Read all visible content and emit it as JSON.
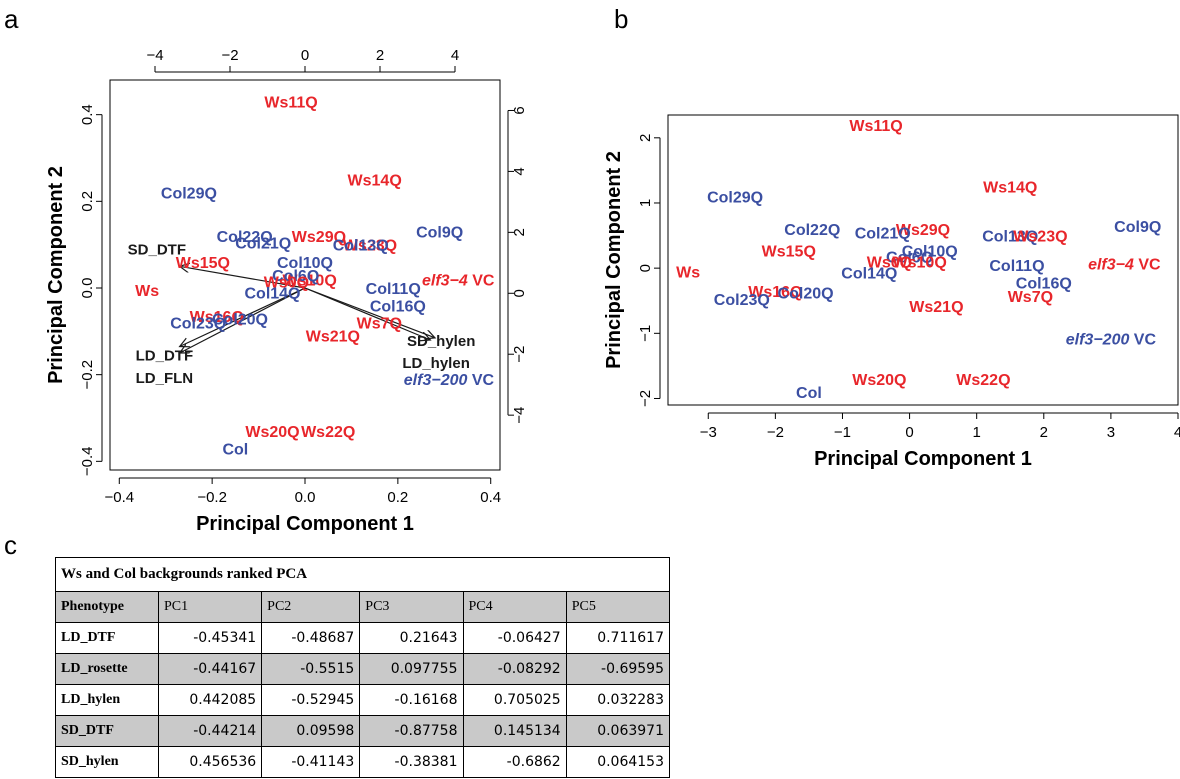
{
  "panels": {
    "a": "a",
    "b": "b",
    "c": "c"
  },
  "colors": {
    "ws": "#e8262b",
    "col": "#3b4fa2",
    "vector": "#1a1a1a"
  },
  "chart_data": [
    {
      "panel": "a",
      "type": "scatter",
      "xlabel": "Principal Component 1",
      "ylabel": "Principal Component 2",
      "xlim": [
        -0.42,
        0.42
      ],
      "ylim": [
        -0.42,
        0.48
      ],
      "x_ticks": [
        "-0.4",
        "-0.2",
        "0.0",
        "0.2",
        "0.4"
      ],
      "y_ticks": [
        "-0.4",
        "-0.2",
        "0.0",
        "0.2",
        "0.4"
      ],
      "top_ticks": [
        "-4",
        "-2",
        "0",
        "2",
        "4"
      ],
      "right_ticks": [
        "-4",
        "-2",
        "0",
        "2",
        "4",
        "6"
      ],
      "points": [
        {
          "label": "Ws11Q",
          "x": -0.03,
          "y": 0.43,
          "group": "ws"
        },
        {
          "label": "Ws14Q",
          "x": 0.15,
          "y": 0.25,
          "group": "ws"
        },
        {
          "label": "Col29Q",
          "x": -0.25,
          "y": 0.22,
          "group": "col"
        },
        {
          "label": "Col22Q",
          "x": -0.13,
          "y": 0.12,
          "group": "col"
        },
        {
          "label": "Ws29Q",
          "x": 0.03,
          "y": 0.12,
          "group": "ws"
        },
        {
          "label": "Col21Q",
          "x": -0.09,
          "y": 0.105,
          "group": "col"
        },
        {
          "label": "Col9Q",
          "x": 0.29,
          "y": 0.13,
          "group": "col"
        },
        {
          "label": "Ws23Q",
          "x": 0.14,
          "y": 0.1,
          "group": "ws"
        },
        {
          "label": "Col13Q",
          "x": 0.12,
          "y": 0.1,
          "group": "col"
        },
        {
          "label": "Ws15Q",
          "x": -0.22,
          "y": 0.06,
          "group": "ws"
        },
        {
          "label": "Col10Q",
          "x": 0.0,
          "y": 0.06,
          "group": "col"
        },
        {
          "label": "Ws10Q",
          "x": 0.01,
          "y": 0.02,
          "group": "ws"
        },
        {
          "label": "Col6Q",
          "x": -0.02,
          "y": 0.03,
          "group": "col"
        },
        {
          "label": "Ws0Q",
          "x": -0.04,
          "y": 0.015,
          "group": "ws"
        },
        {
          "label": "Ws",
          "x": -0.34,
          "y": -0.005,
          "group": "ws"
        },
        {
          "label": "elf3−4 VC",
          "x": 0.33,
          "y": 0.02,
          "group": "ws",
          "italic_part": "elf3−4",
          "plain_part": " VC"
        },
        {
          "label": "Col11Q",
          "x": 0.19,
          "y": 0.0,
          "group": "col"
        },
        {
          "label": "Col14Q",
          "x": -0.07,
          "y": -0.01,
          "group": "col"
        },
        {
          "label": "Col16Q",
          "x": 0.2,
          "y": -0.04,
          "group": "col"
        },
        {
          "label": "Ws16Q",
          "x": -0.19,
          "y": -0.065,
          "group": "ws"
        },
        {
          "label": "Col20Q",
          "x": -0.14,
          "y": -0.07,
          "group": "col"
        },
        {
          "label": "Col23Q",
          "x": -0.23,
          "y": -0.08,
          "group": "col"
        },
        {
          "label": "Ws7Q",
          "x": 0.16,
          "y": -0.08,
          "group": "ws"
        },
        {
          "label": "Ws21Q",
          "x": 0.06,
          "y": -0.11,
          "group": "ws"
        },
        {
          "label": "elf3−200 VC",
          "x": 0.31,
          "y": -0.21,
          "group": "col",
          "italic_part": "elf3−200",
          "plain_part": " VC"
        },
        {
          "label": "Ws20Q",
          "x": -0.07,
          "y": -0.33,
          "group": "ws"
        },
        {
          "label": "Ws22Q",
          "x": 0.05,
          "y": -0.33,
          "group": "ws"
        },
        {
          "label": "Col",
          "x": -0.15,
          "y": -0.37,
          "group": "col"
        }
      ],
      "vectors": [
        {
          "label": "SD_DTF",
          "x": -0.27,
          "y": 0.05
        },
        {
          "label": "LD_DTF",
          "x": -0.27,
          "y": -0.135
        },
        {
          "label": "LD_FLN",
          "x": -0.27,
          "y": -0.15
        },
        {
          "label": "SD_hylen",
          "x": 0.28,
          "y": -0.115
        },
        {
          "label": "LD_hylen",
          "x": 0.27,
          "y": -0.12
        }
      ]
    },
    {
      "panel": "b",
      "type": "scatter",
      "xlabel": "Principal Component 1",
      "ylabel": "Principal Component 2",
      "xlim": [
        -3.6,
        4.0
      ],
      "ylim": [
        -2.1,
        2.35
      ],
      "x_ticks": [
        "-3",
        "-2",
        "-1",
        "0",
        "1",
        "2",
        "3",
        "4"
      ],
      "y_ticks": [
        "-2",
        "-1",
        "0",
        "1",
        "2"
      ],
      "points": [
        {
          "label": "Ws11Q",
          "x": -0.5,
          "y": 2.2,
          "group": "ws"
        },
        {
          "label": "Ws14Q",
          "x": 1.5,
          "y": 1.25,
          "group": "ws"
        },
        {
          "label": "Col29Q",
          "x": -2.6,
          "y": 1.1,
          "group": "col"
        },
        {
          "label": "Col22Q",
          "x": -1.45,
          "y": 0.6,
          "group": "col"
        },
        {
          "label": "Ws29Q",
          "x": 0.2,
          "y": 0.6,
          "group": "ws"
        },
        {
          "label": "Col21Q",
          "x": -0.4,
          "y": 0.55,
          "group": "col"
        },
        {
          "label": "Col9Q",
          "x": 3.4,
          "y": 0.65,
          "group": "col"
        },
        {
          "label": "Col13Q",
          "x": 1.5,
          "y": 0.5,
          "group": "col"
        },
        {
          "label": "Ws23Q",
          "x": 1.95,
          "y": 0.5,
          "group": "ws"
        },
        {
          "label": "Ws15Q",
          "x": -1.8,
          "y": 0.27,
          "group": "ws"
        },
        {
          "label": "Col10Q",
          "x": 0.3,
          "y": 0.27,
          "group": "col"
        },
        {
          "label": "Col6Q",
          "x": 0.0,
          "y": 0.18,
          "group": "col"
        },
        {
          "label": "Ws10Q",
          "x": 0.15,
          "y": 0.1,
          "group": "ws"
        },
        {
          "label": "Ws0Q",
          "x": -0.3,
          "y": 0.1,
          "group": "ws"
        },
        {
          "label": "Ws",
          "x": -3.3,
          "y": -0.05,
          "group": "ws"
        },
        {
          "label": "elf3−4 VC",
          "x": 3.2,
          "y": 0.07,
          "group": "ws",
          "italic_part": "elf3−4",
          "plain_part": " VC"
        },
        {
          "label": "Col11Q",
          "x": 1.6,
          "y": 0.05,
          "group": "col"
        },
        {
          "label": "Col14Q",
          "x": -0.6,
          "y": -0.07,
          "group": "col"
        },
        {
          "label": "Col16Q",
          "x": 2.0,
          "y": -0.22,
          "group": "col"
        },
        {
          "label": "Ws16Q",
          "x": -2.0,
          "y": -0.35,
          "group": "ws"
        },
        {
          "label": "Col20Q",
          "x": -1.55,
          "y": -0.37,
          "group": "col"
        },
        {
          "label": "Col23Q",
          "x": -2.5,
          "y": -0.47,
          "group": "col"
        },
        {
          "label": "Ws7Q",
          "x": 1.8,
          "y": -0.43,
          "group": "ws"
        },
        {
          "label": "Ws21Q",
          "x": 0.4,
          "y": -0.58,
          "group": "ws"
        },
        {
          "label": "elf3−200 VC",
          "x": 3.0,
          "y": -1.08,
          "group": "col",
          "italic_part": "elf3−200",
          "plain_part": " VC"
        },
        {
          "label": "Ws20Q",
          "x": -0.45,
          "y": -1.7,
          "group": "ws"
        },
        {
          "label": "Ws22Q",
          "x": 1.1,
          "y": -1.7,
          "group": "ws"
        },
        {
          "label": "Col",
          "x": -1.5,
          "y": -1.9,
          "group": "col"
        }
      ]
    },
    {
      "panel": "c",
      "type": "table",
      "title": "Ws and Col backgrounds ranked PCA",
      "columns": [
        "Phenotype",
        "PC1",
        "PC2",
        "PC3",
        "PC4",
        "PC5"
      ],
      "rows": [
        [
          "LD_DTF",
          "-0.45341",
          "-0.48687",
          "0.21643",
          "-0.06427",
          "0.711617"
        ],
        [
          "LD_rosette",
          "-0.44167",
          "-0.5515",
          "0.097755",
          "-0.08292",
          "-0.69595"
        ],
        [
          "LD_hylen",
          "0.442085",
          "-0.52945",
          "-0.16168",
          "0.705025",
          "0.032283"
        ],
        [
          "SD_DTF",
          "-0.44214",
          "0.09598",
          "-0.87758",
          "0.145134",
          "0.063971"
        ],
        [
          "SD_hylen",
          "0.456536",
          "-0.41143",
          "-0.38381",
          "-0.6862",
          "0.064153"
        ]
      ]
    }
  ]
}
